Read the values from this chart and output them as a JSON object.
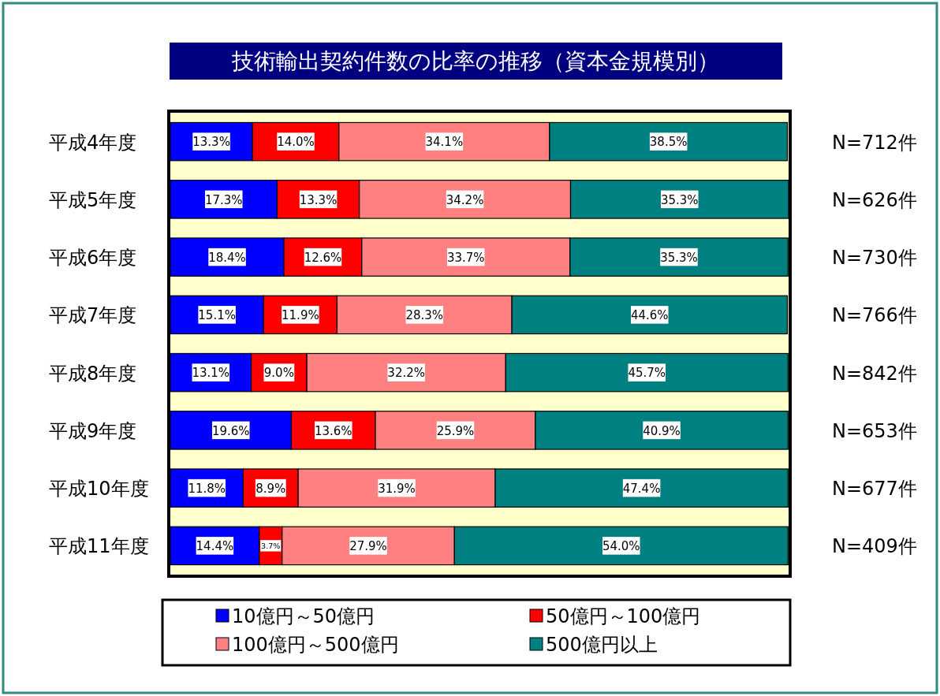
{
  "chart_data": {
    "type": "bar",
    "orientation": "horizontal",
    "stacked": true,
    "legend": "bottom",
    "title": "技術輸出契約件数の比率の推移（資本金規模別）",
    "categories": [
      "平成4年度",
      "平成5年度",
      "平成6年度",
      "平成7年度",
      "平成8年度",
      "平成9年度",
      "平成10年度",
      "平成11年度"
    ],
    "series": [
      {
        "name": "10億円～50億円",
        "color": "#0000ff",
        "values": [
          13.3,
          17.3,
          18.4,
          15.1,
          13.1,
          19.6,
          11.8,
          14.4
        ],
        "value_labels": [
          "13.3%",
          "17.3%",
          "18.4%",
          "15.1%",
          "13.1%",
          "19.6%",
          "11.8%",
          "14.4%"
        ]
      },
      {
        "name": "50億円～100億円",
        "color": "#ff0000",
        "values": [
          14.0,
          13.3,
          12.6,
          11.9,
          9.0,
          13.6,
          8.9,
          3.7
        ],
        "value_labels": [
          "14.0%",
          "13.3%",
          "12.6%",
          "11.9%",
          "9.0%",
          "13.6%",
          "8.9%",
          "3.7%"
        ]
      },
      {
        "name": "100億円～500億円",
        "color": "#ff8080",
        "values": [
          34.1,
          34.2,
          33.7,
          28.3,
          32.2,
          25.9,
          31.9,
          27.9
        ],
        "value_labels": [
          "34.1%",
          "34.2%",
          "33.7%",
          "28.3%",
          "32.2%",
          "25.9%",
          "31.9%",
          "27.9%"
        ]
      },
      {
        "name": "500億円以上",
        "color": "#008080",
        "values": [
          38.5,
          35.3,
          35.3,
          44.6,
          45.7,
          40.9,
          47.4,
          54.0
        ],
        "value_labels": [
          "38.5%",
          "35.3%",
          "35.3%",
          "44.6%",
          "45.7%",
          "40.9%",
          "47.4%",
          "54.0%"
        ]
      }
    ],
    "annotations": [
      "N=712件",
      "N=626件",
      "N=730件",
      "N=766件",
      "N=842件",
      "N=653件",
      "N=677件",
      "N=409件"
    ]
  }
}
